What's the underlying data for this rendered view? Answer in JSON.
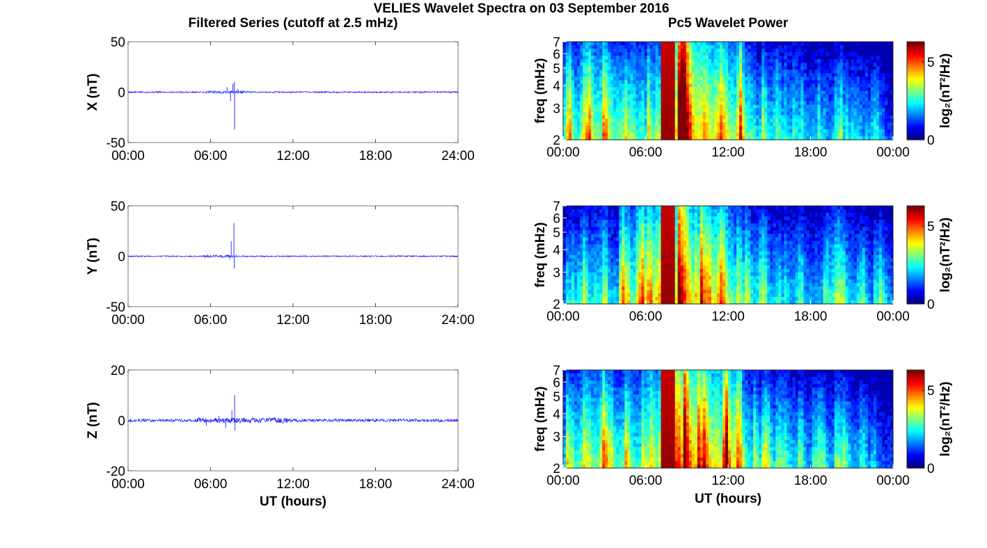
{
  "figure": {
    "suptitle": "VELIES Wavelet Spectra on 03 September 2016",
    "left_title": "Filtered Series (cutoff at 2.5 mHz)",
    "right_title": "Pc5 Wavelet Power",
    "x_axis_label": "UT (hours)"
  },
  "chart_data": [
    {
      "type": "line",
      "id": "x-series",
      "ylabel": "X (nT)",
      "xlim": [
        0,
        24
      ],
      "ylim": [
        -50,
        50
      ],
      "x_ticks": [
        "00:00",
        "06:00",
        "12:00",
        "18:00",
        "24:00"
      ],
      "y_ticks": [
        "50",
        "0",
        "-50"
      ],
      "line_color": "#0000ff",
      "noise_amp": 0.8,
      "spikes": [
        {
          "t": 7.2,
          "v": 5
        },
        {
          "t": 7.45,
          "v": -9
        },
        {
          "t": 7.62,
          "v": 8
        },
        {
          "t": 7.75,
          "v": -37
        },
        {
          "t": 7.72,
          "v": 10
        },
        {
          "t": 8.0,
          "v": 3
        }
      ],
      "active_window": [
        5.5,
        8.5
      ]
    },
    {
      "type": "line",
      "id": "y-series",
      "ylabel": "Y (nT)",
      "xlim": [
        0,
        24
      ],
      "ylim": [
        -50,
        50
      ],
      "x_ticks": [
        "00:00",
        "06:00",
        "12:00",
        "18:00",
        "24:00"
      ],
      "y_ticks": [
        "50",
        "0",
        "-50"
      ],
      "line_color": "#0000ff",
      "noise_amp": 0.7,
      "spikes": [
        {
          "t": 5.8,
          "v": 2
        },
        {
          "t": 7.5,
          "v": 15
        },
        {
          "t": 7.7,
          "v": 33
        },
        {
          "t": 7.72,
          "v": -12
        },
        {
          "t": 7.4,
          "v": -3
        }
      ],
      "active_window": [
        5.5,
        8.0
      ]
    },
    {
      "type": "line",
      "id": "z-series",
      "ylabel": "Z (nT)",
      "xlim": [
        0,
        24
      ],
      "ylim": [
        -20,
        20
      ],
      "x_ticks": [
        "00:00",
        "06:00",
        "12:00",
        "18:00",
        "24:00"
      ],
      "y_ticks": [
        "20",
        "0",
        "-20"
      ],
      "line_color": "#0000ff",
      "noise_amp": 0.6,
      "spikes": [
        {
          "t": 5.7,
          "v": -2
        },
        {
          "t": 6.6,
          "v": 1.8
        },
        {
          "t": 7.1,
          "v": -3
        },
        {
          "t": 7.55,
          "v": 4
        },
        {
          "t": 7.75,
          "v": 10
        },
        {
          "t": 7.78,
          "v": -4
        }
      ],
      "active_window": [
        5.0,
        12.0
      ]
    },
    {
      "type": "heatmap",
      "id": "x-wavelet",
      "ylabel": "freq (mHz)",
      "xlim": [
        0,
        24
      ],
      "ylim": [
        2,
        7
      ],
      "log_y": true,
      "x_ticks": [
        "00:00",
        "06:00",
        "12:00",
        "18:00",
        "00:00"
      ],
      "y_ticks": [
        "7",
        "6",
        "5",
        "4",
        "3",
        "2"
      ],
      "colorbar": {
        "label": "log₂(nT²/Hz)",
        "range": [
          0,
          6.3
        ],
        "ticks": [
          "5",
          "0"
        ],
        "colormap": "jet"
      },
      "intensity_by_hour": [
        0.55,
        0.6,
        0.65,
        0.6,
        0.5,
        0.55,
        0.6,
        0.8,
        0.95,
        0.85,
        0.75,
        0.7,
        0.7,
        0.55,
        0.45,
        0.45,
        0.45,
        0.4,
        0.4,
        0.4,
        0.35,
        0.35,
        0.3,
        0.25
      ],
      "seed": 11
    },
    {
      "type": "heatmap",
      "id": "y-wavelet",
      "ylabel": "freq (mHz)",
      "xlim": [
        0,
        24
      ],
      "ylim": [
        2,
        7
      ],
      "log_y": true,
      "x_ticks": [
        "00:00",
        "06:00",
        "12:00",
        "18:00",
        "00:00"
      ],
      "y_ticks": [
        "7",
        "6",
        "5",
        "4",
        "3",
        "2"
      ],
      "colorbar": {
        "label": "log₂(nT²/Hz)",
        "range": [
          0,
          6.3
        ],
        "ticks": [
          "5",
          "0"
        ],
        "colormap": "jet"
      },
      "intensity_by_hour": [
        0.45,
        0.45,
        0.5,
        0.45,
        0.55,
        0.65,
        0.7,
        0.85,
        0.9,
        0.75,
        0.7,
        0.7,
        0.6,
        0.5,
        0.45,
        0.4,
        0.45,
        0.4,
        0.4,
        0.5,
        0.45,
        0.35,
        0.35,
        0.3
      ],
      "seed": 23
    },
    {
      "type": "heatmap",
      "id": "z-wavelet",
      "ylabel": "freq (mHz)",
      "xlim": [
        0,
        24
      ],
      "ylim": [
        2,
        7
      ],
      "log_y": true,
      "x_ticks": [
        "00:00",
        "06:00",
        "12:00",
        "18:00",
        "00:00"
      ],
      "y_ticks": [
        "7",
        "6",
        "5",
        "4",
        "3",
        "2"
      ],
      "colorbar": {
        "label": "log₂(nT²/Hz)",
        "range": [
          0,
          6.3
        ],
        "ticks": [
          "5",
          "0"
        ],
        "colormap": "jet"
      },
      "intensity_by_hour": [
        0.5,
        0.6,
        0.65,
        0.55,
        0.55,
        0.6,
        0.7,
        0.85,
        0.9,
        0.8,
        0.8,
        0.75,
        0.75,
        0.55,
        0.45,
        0.45,
        0.45,
        0.4,
        0.4,
        0.4,
        0.4,
        0.35,
        0.3,
        0.25
      ],
      "seed": 37
    }
  ]
}
